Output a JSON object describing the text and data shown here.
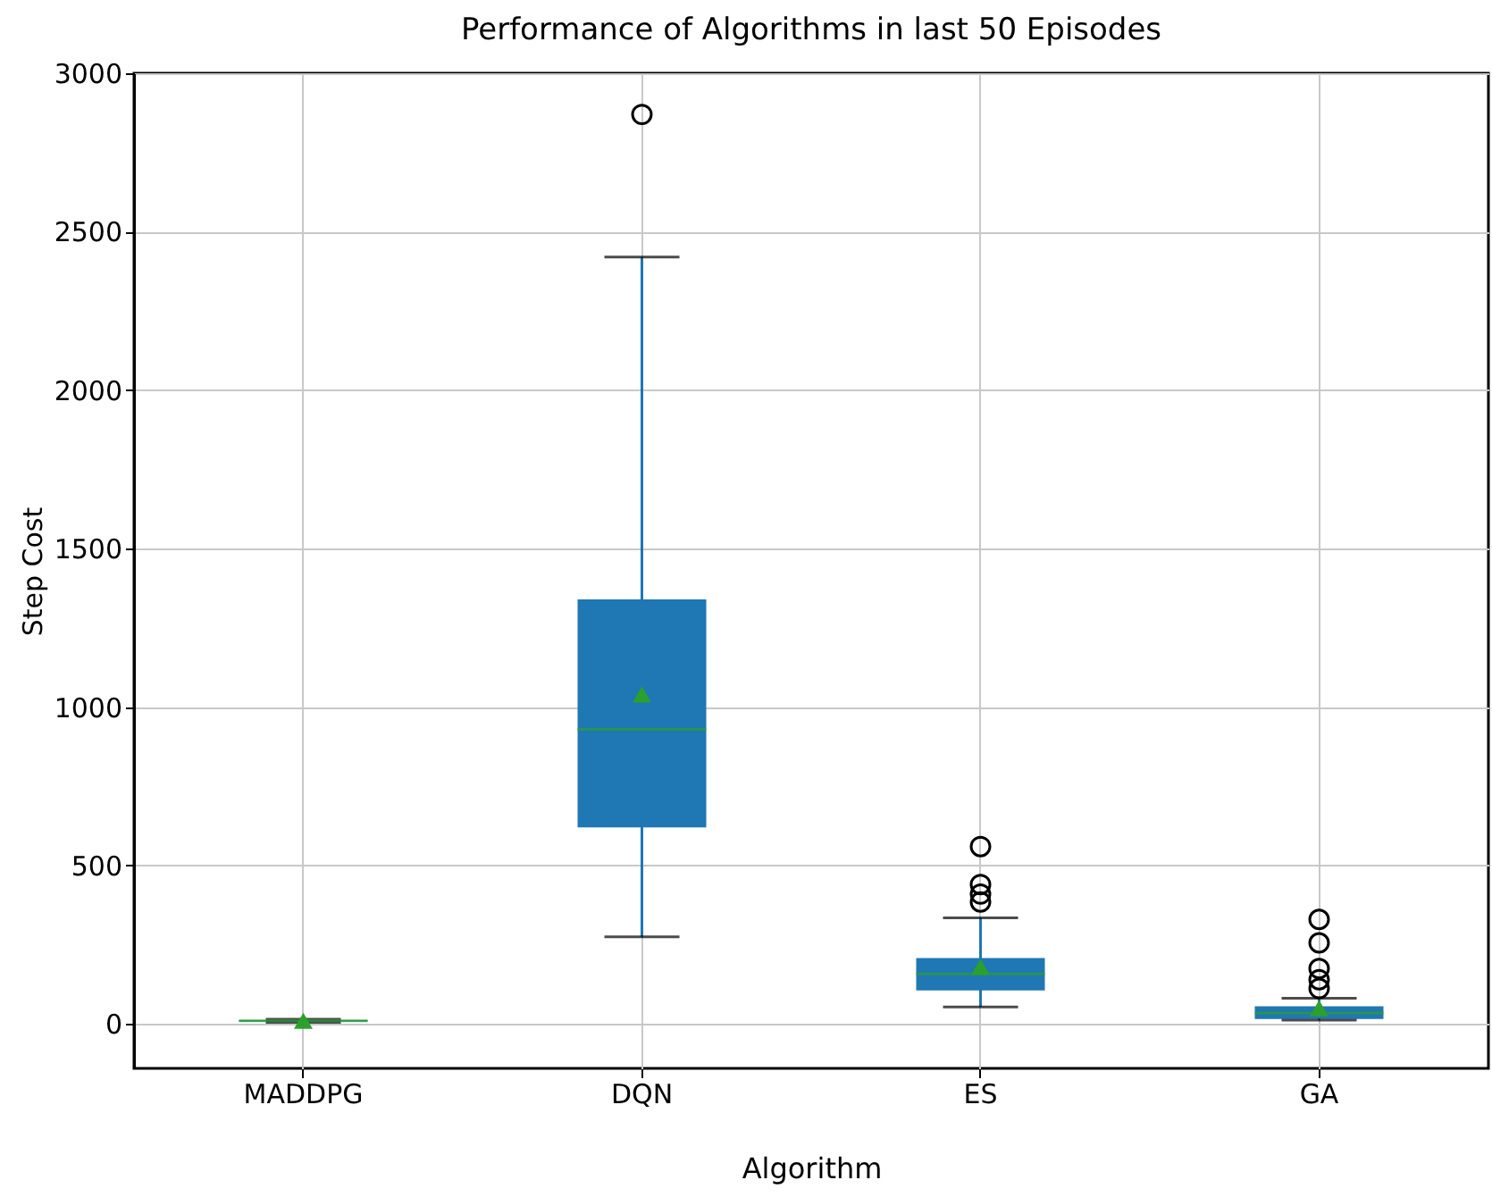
{
  "chart_data": {
    "type": "box",
    "title": "Performance of Algorithms in last 50 Episodes",
    "xlabel": "Algorithm",
    "ylabel": "Step Cost",
    "categories": [
      "MADDPG",
      "DQN",
      "ES",
      "GA"
    ],
    "color": "#1f77b4",
    "boxes": [
      {
        "low": 5,
        "q1": 8,
        "median": 10,
        "q3": 12,
        "high": 15,
        "mean": 10
      },
      {
        "low": 275,
        "q1": 620,
        "median": 930,
        "q3": 1340,
        "high": 2420,
        "mean": 1040,
        "outliers": [
          2870
        ]
      },
      {
        "low": 54,
        "q1": 106,
        "median": 158,
        "q3": 208,
        "high": 335,
        "mean": 180,
        "outliers": [
          385,
          410,
          440,
          560
        ]
      },
      {
        "low": 12,
        "q1": 16,
        "median": 35,
        "q3": 56,
        "high": 81,
        "mean": 50,
        "outliers": [
          112,
          140,
          175,
          256,
          330
        ]
      }
    ],
    "ylim": [
      -140,
      3000
    ],
    "yticks": [
      0,
      500,
      1000,
      1500,
      2000,
      2500,
      3000
    ],
    "grid": true
  }
}
